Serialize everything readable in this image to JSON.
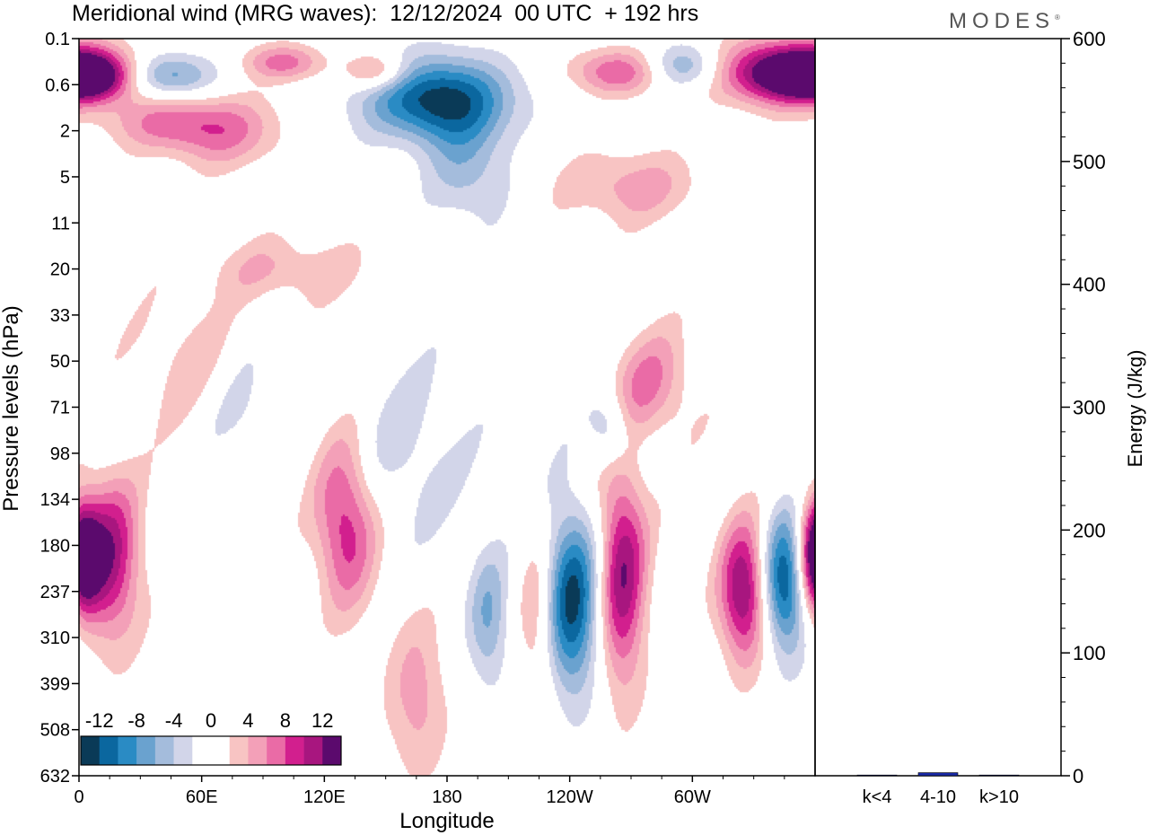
{
  "title": "Meridional wind (MRG waves):  12/12/2024  00 UTC  + 192 hrs",
  "brand": "MODES",
  "brand_mark": "®",
  "chart_data": [
    {
      "type": "heatmap",
      "title": "Meridional wind (MRG waves):  12/12/2024  00 UTC  + 192 hrs",
      "xlabel": "Longitude",
      "ylabel": "Pressure levels (hPa)",
      "x_tick_labels": [
        "0",
        "60E",
        "120E",
        "180",
        "120W",
        "60W"
      ],
      "x_tick_degrees": [
        0,
        60,
        120,
        180,
        240,
        300
      ],
      "x_range_degrees": [
        0,
        360
      ],
      "y_tick_labels": [
        "0.1",
        "0.6",
        "2",
        "5",
        "11",
        "20",
        "33",
        "50",
        "71",
        "98",
        "134",
        "180",
        "237",
        "310",
        "399",
        "508",
        "632"
      ],
      "y_scale": "pressure levels (one tick per level, top = 0.1 hPa, bottom = 632 hPa)",
      "colorbar": {
        "placement": "bottom-left",
        "labels": [
          "-12",
          "-8",
          "-4",
          "0",
          "4",
          "8",
          "12"
        ],
        "colors": [
          "#0a3a57",
          "#0b679f",
          "#2a8bc4",
          "#6aa2cf",
          "#a4bcdc",
          "#d2d5e9",
          "#ffffff",
          "#ffffff",
          "#f8c4c3",
          "#f3a0b8",
          "#ea6ba6",
          "#d21f8e",
          "#a8167f",
          "#5b0a6d"
        ]
      },
      "features": [
        {
          "lon": 5,
          "lev": 0.8,
          "v": 13,
          "w": 25,
          "h": 0.5
        },
        {
          "lon": 40,
          "lev": 1.8,
          "v": 5,
          "w": 30,
          "h": 0.6
        },
        {
          "lon": 70,
          "lev": 2.0,
          "v": 6,
          "w": 30,
          "h": 0.8
        },
        {
          "lon": 40,
          "lev": 0.8,
          "v": -9,
          "w": 25,
          "h": 0.5
        },
        {
          "lon": 175,
          "lev": 1.3,
          "v": -13,
          "w": 35,
          "h": 0.9
        },
        {
          "lon": 190,
          "lev": 2.8,
          "v": -5,
          "w": 20,
          "h": 1.2
        },
        {
          "lon": 100,
          "lev": 0.5,
          "v": 7,
          "w": 20,
          "h": 0.4
        },
        {
          "lon": 145,
          "lev": 0.7,
          "v": 7,
          "w": 15,
          "h": 0.4
        },
        {
          "lon": 265,
          "lev": 0.7,
          "v": 8,
          "w": 25,
          "h": 0.5
        },
        {
          "lon": 295,
          "lev": 0.6,
          "v": -8,
          "w": 20,
          "h": 0.5
        },
        {
          "lon": 345,
          "lev": 0.7,
          "v": 14,
          "w": 35,
          "h": 0.7
        },
        {
          "lon": 270,
          "lev": 3.2,
          "v": 5,
          "w": 35,
          "h": 0.8
        },
        {
          "lon": 100,
          "lev": 5.0,
          "v": 4,
          "w": 40,
          "h": 0.7
        },
        {
          "lon": 55,
          "lev": 7.0,
          "v": 3,
          "w": 30,
          "h": 1.5
        },
        {
          "lon": 80,
          "lev": 8.0,
          "v": -3,
          "w": 20,
          "h": 1.5
        },
        {
          "lon": 130,
          "lev": 10.5,
          "v": 10,
          "w": 15,
          "h": 1.8
        },
        {
          "lon": 15,
          "lev": 11.3,
          "v": 11,
          "w": 15,
          "h": 1.8
        },
        {
          "lon": 240,
          "lev": 12.2,
          "v": -13,
          "w": 15,
          "h": 2.0
        },
        {
          "lon": 265,
          "lev": 11.6,
          "v": 12,
          "w": 12,
          "h": 2.5
        },
        {
          "lon": 325,
          "lev": 12.0,
          "v": 13,
          "w": 12,
          "h": 1.5
        },
        {
          "lon": 345,
          "lev": 11.8,
          "v": -13,
          "w": 12,
          "h": 1.5
        },
        {
          "lon": 200,
          "lev": 12.6,
          "v": -6,
          "w": 10,
          "h": 1.5
        },
        {
          "lon": 225,
          "lev": 12.5,
          "v": 6,
          "w": 10,
          "h": 2.0
        },
        {
          "lon": 165,
          "lev": 14.3,
          "v": 5,
          "w": 15,
          "h": 1.8
        },
        {
          "lon": 360,
          "lev": 11.2,
          "v": 10,
          "w": 10,
          "h": 1.2
        },
        {
          "lon": 0,
          "lev": 11.2,
          "v": 6,
          "w": 8,
          "h": 1.2
        },
        {
          "lon": 160,
          "lev": 9.0,
          "v": -3,
          "w": 30,
          "h": 2.0
        },
        {
          "lon": 280,
          "lev": 7.5,
          "v": 6,
          "w": 20,
          "h": 1.2
        },
        {
          "lon": 260,
          "lev": 8.5,
          "v": -6,
          "w": 10,
          "h": 0.8
        }
      ],
      "bars": {
        "categories": [
          "k<4",
          "4-10",
          "k>10"
        ],
        "values": [
          0.3,
          2.5,
          0.2
        ],
        "ylabel": "Energy (J/kg)",
        "ylim": [
          0,
          600
        ],
        "y_ticks": [
          "0",
          "100",
          "200",
          "300",
          "400",
          "500",
          "600"
        ],
        "color": "#1a2aa6"
      }
    }
  ]
}
